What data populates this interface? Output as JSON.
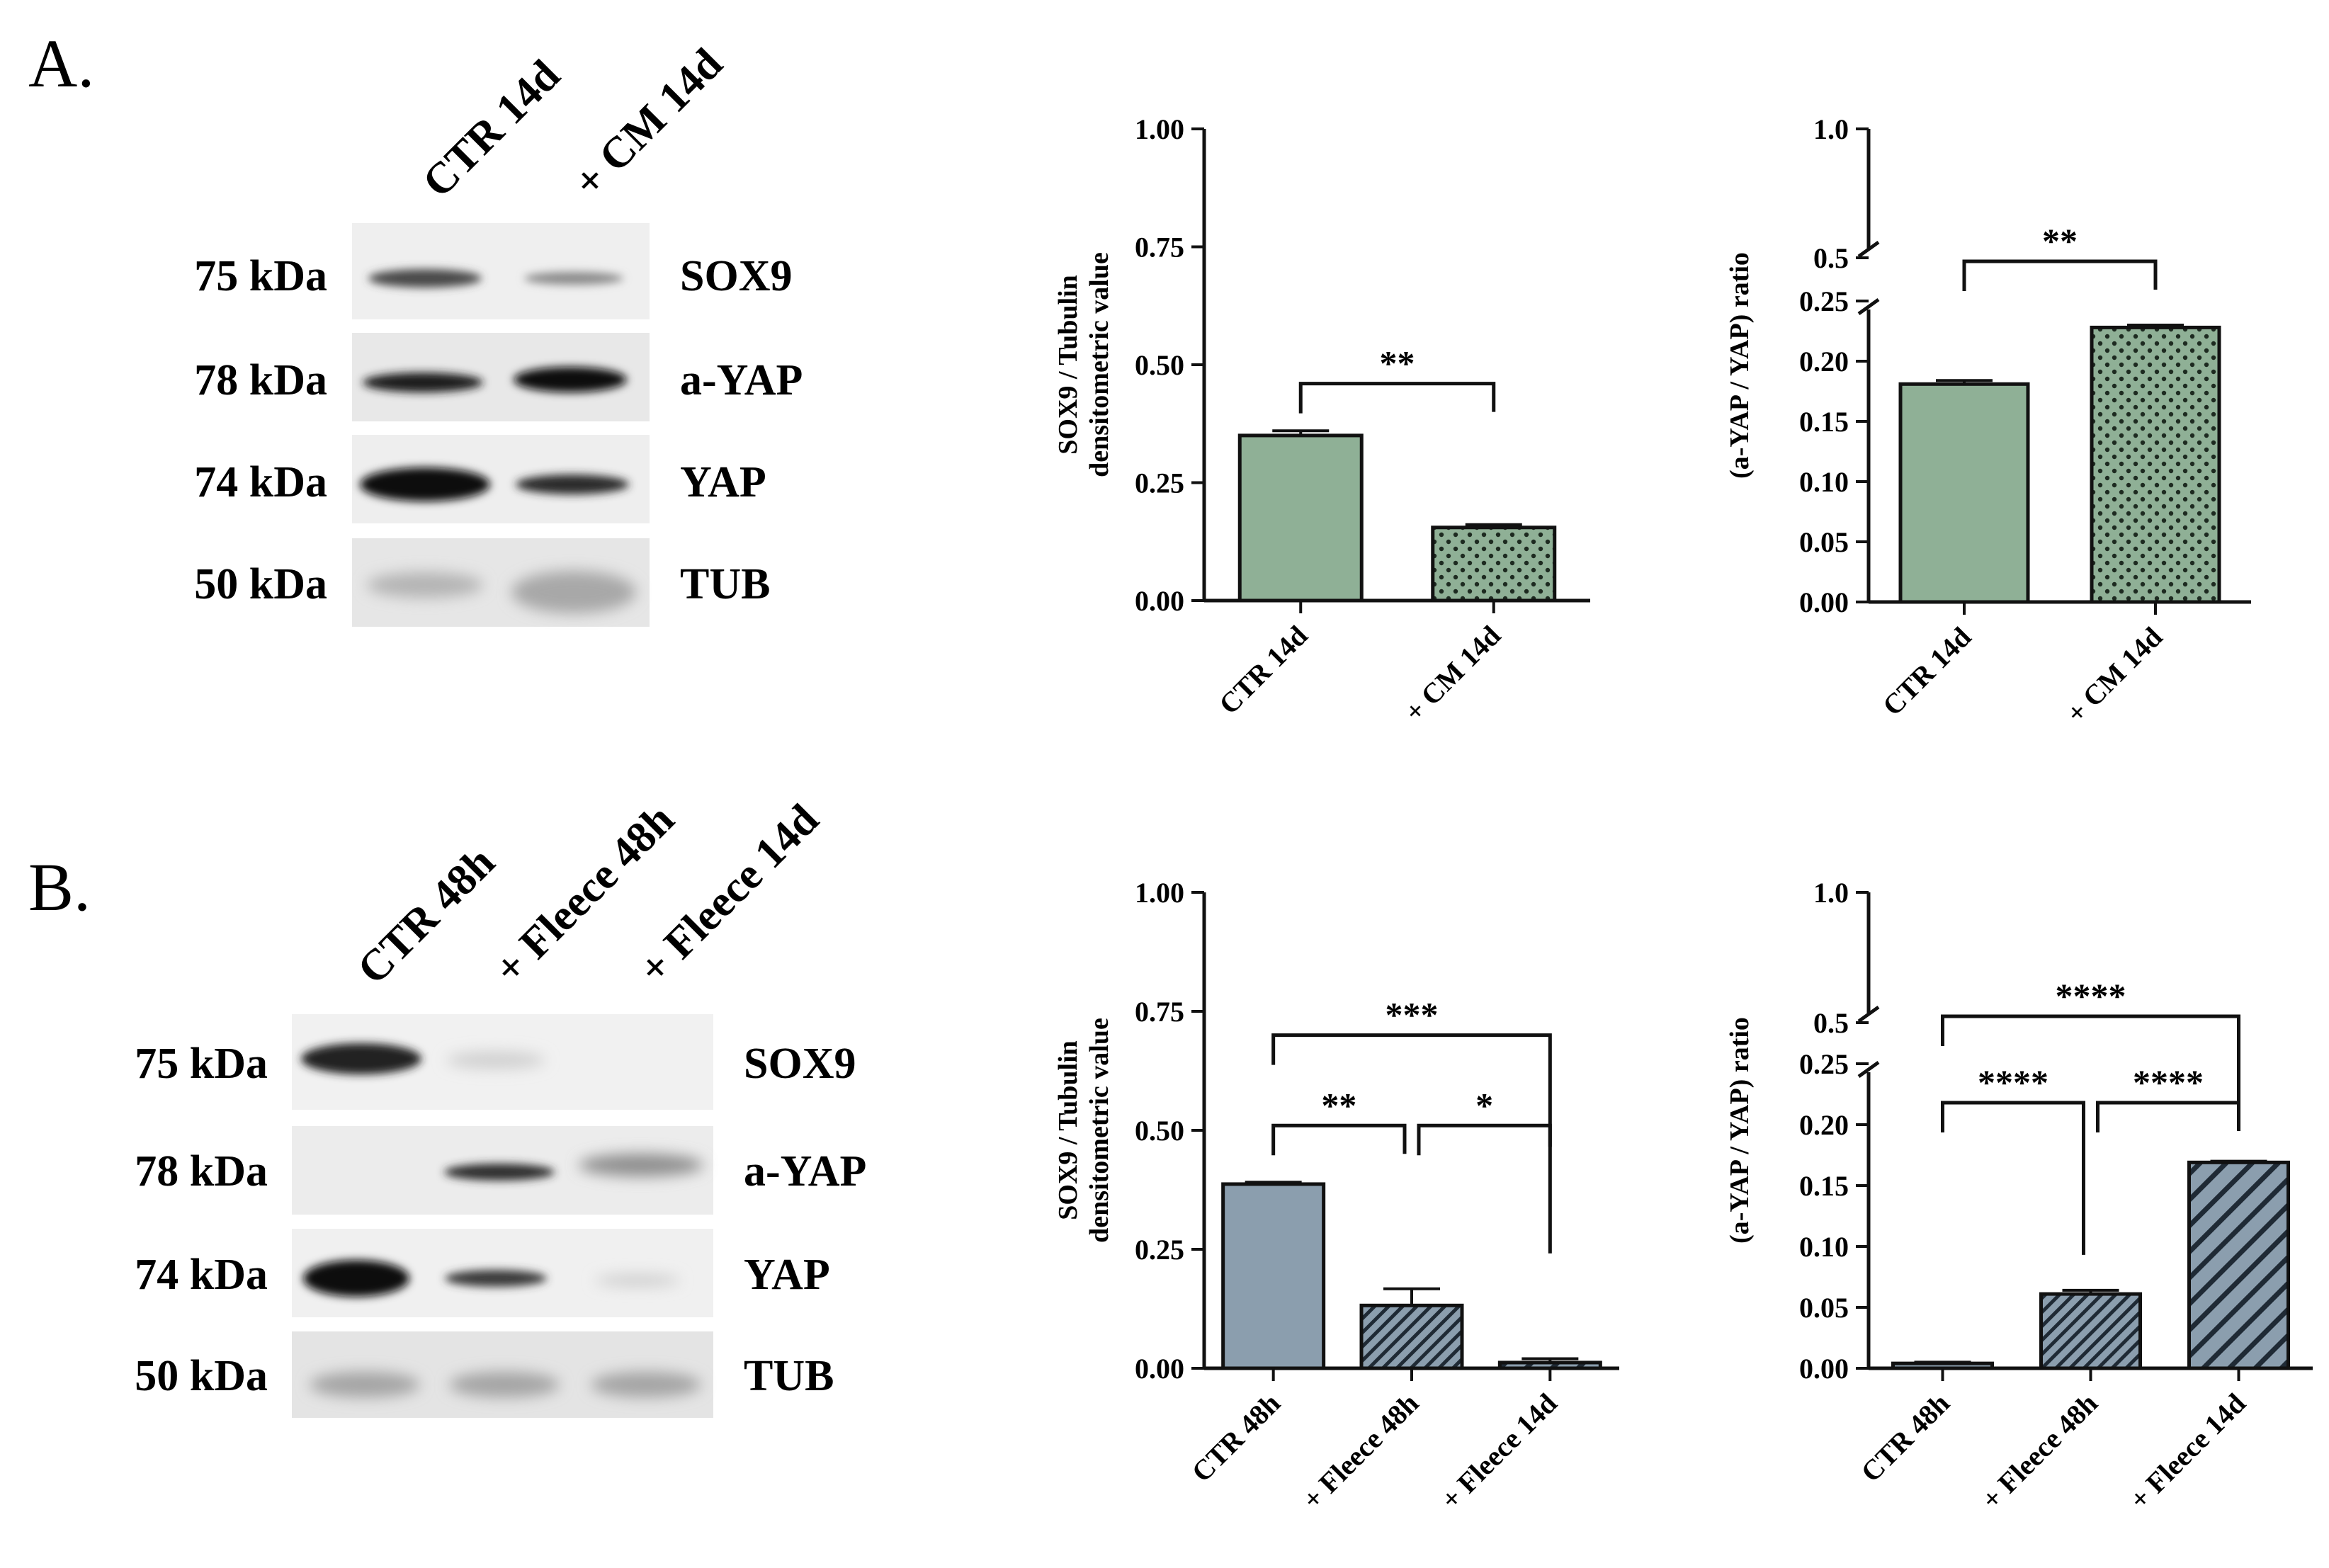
{
  "panels": [
    {
      "label": "A.",
      "blot": {
        "lanes": [
          "CTR 14d",
          "+ CM 14d"
        ],
        "rows": [
          {
            "weight": "75 kDa",
            "protein": "SOX9"
          },
          {
            "weight": "78 kDa",
            "protein": "a-YAP"
          },
          {
            "weight": "74 kDa",
            "protein": "YAP"
          },
          {
            "weight": "50 kDa",
            "protein": "TUB"
          }
        ]
      }
    },
    {
      "label": "B.",
      "blot": {
        "lanes": [
          "CTR 48h",
          "+ Fleece 48h",
          "+ Fleece 14d"
        ],
        "rows": [
          {
            "weight": "75 kDa",
            "protein": "SOX9"
          },
          {
            "weight": "78 kDa",
            "protein": "a-YAP"
          },
          {
            "weight": "74 kDa",
            "protein": "YAP"
          },
          {
            "weight": "50 kDa",
            "protein": "TUB"
          }
        ]
      }
    }
  ],
  "chart_data": [
    {
      "type": "bar",
      "categories": [
        "CTR 14d",
        "+ CM 14d"
      ],
      "values": [
        0.35,
        0.155
      ],
      "errors": [
        0.01,
        0.006
      ],
      "ylabel_lines": [
        "SOX9 / Tubulin",
        "densitometric value"
      ],
      "ylim": [
        0,
        1.0
      ],
      "yticks": [
        "0.00",
        "0.25",
        "0.50",
        "0.75",
        "1.00"
      ],
      "bar_colors": [
        "#8fb096",
        "#8fb096"
      ],
      "bar_patterns": [
        "solid",
        "dots"
      ],
      "significance": [
        {
          "from": 0,
          "to": 1,
          "label": "**"
        }
      ]
    },
    {
      "type": "bar",
      "categories": [
        "CTR 14d",
        "+ CM 14d"
      ],
      "values": [
        0.181,
        0.228
      ],
      "errors": [
        0.003,
        0.002
      ],
      "ylabel": "(a-YAP / YAP) ratio",
      "ylim": [
        0,
        1.0
      ],
      "y_break": [
        0.25,
        0.5
      ],
      "yticks_lower": [
        "0.00",
        "0.05",
        "0.10",
        "0.15",
        "0.20",
        "0.25"
      ],
      "yticks_upper": [
        "0.5",
        "1.0"
      ],
      "bar_colors": [
        "#8fb096",
        "#8fb096"
      ],
      "bar_patterns": [
        "solid",
        "dots"
      ],
      "significance": [
        {
          "from": 0,
          "to": 1,
          "label": "**"
        }
      ]
    },
    {
      "type": "bar",
      "categories": [
        "CTR 48h",
        "+ Fleece 48h",
        "+ Fleece 14d"
      ],
      "values": [
        0.387,
        0.132,
        0.012
      ],
      "errors": [
        0.004,
        0.035,
        0.008
      ],
      "ylabel_lines": [
        "SOX9 / Tubulin",
        "densitometric value"
      ],
      "ylim": [
        0,
        1.0
      ],
      "yticks": [
        "0.00",
        "0.25",
        "0.50",
        "0.75",
        "1.00"
      ],
      "bar_colors": [
        "#8b9eae",
        "#8b9eae",
        "#8b9eae"
      ],
      "bar_patterns": [
        "solid",
        "hatch-dense",
        "hatch"
      ],
      "significance": [
        {
          "from": 0,
          "to": 1,
          "label": "**"
        },
        {
          "from": 1,
          "to": 2,
          "label": "*"
        },
        {
          "from": 0,
          "to": 2,
          "label": "***"
        }
      ]
    },
    {
      "type": "bar",
      "categories": [
        "CTR 48h",
        "+ Fleece 48h",
        "+ Fleece 14d"
      ],
      "values": [
        0.004,
        0.061,
        0.169
      ],
      "errors": [
        0.001,
        0.003,
        0.001
      ],
      "ylabel": "(a-YAP / YAP) ratio",
      "ylim": [
        0,
        1.0
      ],
      "y_break": [
        0.25,
        0.5
      ],
      "yticks_lower": [
        "0.00",
        "0.05",
        "0.10",
        "0.15",
        "0.20",
        "0.25"
      ],
      "yticks_upper": [
        "0.5",
        "1.0"
      ],
      "bar_colors": [
        "#8b9eae",
        "#8b9eae",
        "#8b9eae"
      ],
      "bar_patterns": [
        "solid",
        "hatch-dense",
        "hatch"
      ],
      "significance": [
        {
          "from": 0,
          "to": 1,
          "label": "****"
        },
        {
          "from": 1,
          "to": 2,
          "label": "****"
        },
        {
          "from": 0,
          "to": 2,
          "label": "****"
        }
      ]
    }
  ]
}
